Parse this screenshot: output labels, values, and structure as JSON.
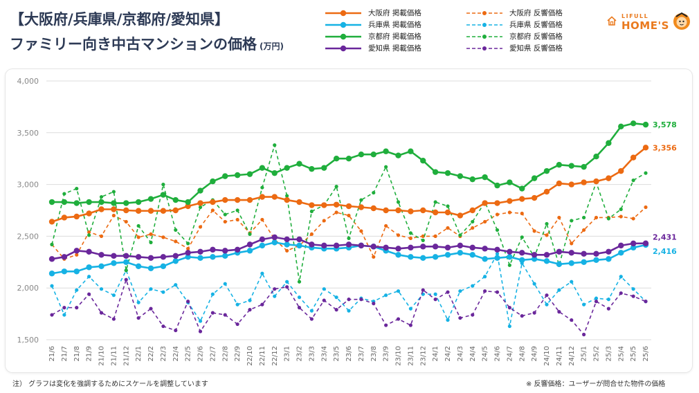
{
  "header": {
    "title_line1": "【大阪府/兵庫県/京都府/愛知県】",
    "title_line2": "ファミリー向き中古マンションの価格",
    "unit": "(万円)"
  },
  "logo": {
    "line1": "LIFULL",
    "line2": "HOME'S"
  },
  "footer": {
    "note_left": "注） グラフは変化を強調するためにスケールを調整しています",
    "note_right": "※ 反響価格：ユーザーが問合せた物件の価格"
  },
  "chart_data": {
    "type": "line",
    "ylim": [
      1500,
      4000
    ],
    "yticks": [
      1500,
      2000,
      2500,
      3000,
      3500,
      4000
    ],
    "ytick_labels": [
      "1,500",
      "2,000",
      "2,500",
      "3,000",
      "3,500",
      "4,000"
    ],
    "grid": true,
    "legend_position": "top",
    "categories": [
      "21/6",
      "21/7",
      "21/8",
      "21/9",
      "21/10",
      "21/11",
      "21/12",
      "22/1",
      "22/2",
      "22/3",
      "22/4",
      "22/5",
      "22/6",
      "22/7",
      "22/8",
      "22/9",
      "22/10",
      "22/11",
      "22/12",
      "23/1",
      "23/2",
      "23/3",
      "23/4",
      "23/5",
      "23/6",
      "23/7",
      "23/8",
      "23/9",
      "23/10",
      "23/11",
      "23/12",
      "24/1",
      "24/2",
      "24/3",
      "24/4",
      "24/5",
      "24/6",
      "24/7",
      "24/8",
      "24/9",
      "24/10",
      "24/11",
      "24/12",
      "25/1",
      "25/2",
      "25/3",
      "25/4",
      "25/5",
      "25/6"
    ],
    "series": [
      {
        "name": "大阪府 掲載価格",
        "style": "solid",
        "color": "#ec6a12",
        "values": [
          2640,
          2680,
          2690,
          2720,
          2760,
          2760,
          2750,
          2745,
          2745,
          2745,
          2750,
          2790,
          2820,
          2830,
          2850,
          2850,
          2850,
          2880,
          2880,
          2850,
          2830,
          2800,
          2800,
          2805,
          2790,
          2780,
          2770,
          2750,
          2750,
          2740,
          2750,
          2730,
          2730,
          2700,
          2750,
          2820,
          2820,
          2840,
          2860,
          2870,
          2930,
          3010,
          3000,
          3020,
          3030,
          3060,
          3130,
          3260,
          3356
        ],
        "end_label": "3,356"
      },
      {
        "name": "兵庫県 掲載価格",
        "style": "solid",
        "color": "#16b2e4",
        "values": [
          2140,
          2160,
          2160,
          2200,
          2210,
          2240,
          2250,
          2210,
          2190,
          2210,
          2260,
          2300,
          2290,
          2300,
          2310,
          2340,
          2360,
          2410,
          2440,
          2420,
          2410,
          2390,
          2380,
          2380,
          2390,
          2410,
          2400,
          2360,
          2320,
          2300,
          2290,
          2300,
          2320,
          2340,
          2320,
          2280,
          2290,
          2300,
          2270,
          2280,
          2260,
          2230,
          2240,
          2250,
          2270,
          2280,
          2340,
          2390,
          2416
        ],
        "end_label": "2,416"
      },
      {
        "name": "京都府 掲載価格",
        "style": "solid",
        "color": "#1fae3c",
        "values": [
          2830,
          2830,
          2820,
          2830,
          2830,
          2820,
          2820,
          2830,
          2860,
          2900,
          2850,
          2830,
          2940,
          3030,
          3080,
          3090,
          3100,
          3160,
          3110,
          3160,
          3200,
          3150,
          3160,
          3250,
          3250,
          3290,
          3290,
          3320,
          3280,
          3320,
          3230,
          3120,
          3110,
          3080,
          3050,
          3070,
          2990,
          3020,
          2960,
          3060,
          3130,
          3190,
          3180,
          3170,
          3270,
          3400,
          3560,
          3590,
          3578
        ],
        "end_label": "3,578"
      },
      {
        "name": "愛知県 掲載価格",
        "style": "solid",
        "color": "#6a279b",
        "values": [
          2280,
          2300,
          2360,
          2350,
          2320,
          2310,
          2310,
          2300,
          2290,
          2300,
          2310,
          2340,
          2350,
          2370,
          2360,
          2370,
          2420,
          2470,
          2490,
          2470,
          2470,
          2420,
          2410,
          2410,
          2420,
          2410,
          2400,
          2390,
          2380,
          2390,
          2400,
          2400,
          2390,
          2410,
          2390,
          2380,
          2370,
          2350,
          2340,
          2320,
          2320,
          2350,
          2340,
          2330,
          2330,
          2350,
          2410,
          2430,
          2431
        ],
        "end_label": "2,431"
      },
      {
        "name": "大阪府 反響価格",
        "style": "dashed",
        "color": "#ec6a12",
        "values": [
          2420,
          2280,
          2320,
          2540,
          2500,
          2700,
          2640,
          2490,
          2520,
          2490,
          2450,
          2380,
          2590,
          2750,
          2640,
          2660,
          2530,
          2660,
          2470,
          2360,
          2410,
          2520,
          2650,
          2730,
          2700,
          2550,
          2300,
          2600,
          2510,
          2480,
          2500,
          2500,
          2580,
          2500,
          2580,
          2640,
          2710,
          2730,
          2720,
          2550,
          2510,
          2680,
          2430,
          2560,
          2680,
          2680,
          2690,
          2670,
          2780
        ]
      },
      {
        "name": "兵庫県 反響価格",
        "style": "dashed",
        "color": "#16b2e4",
        "values": [
          2020,
          1740,
          1980,
          2110,
          1990,
          1930,
          2170,
          1860,
          1990,
          1960,
          2030,
          1860,
          1680,
          1940,
          2040,
          1840,
          1880,
          2140,
          1920,
          2060,
          1910,
          1780,
          1990,
          1910,
          1780,
          1900,
          1870,
          1930,
          1970,
          1800,
          1940,
          1940,
          1690,
          1970,
          2020,
          2110,
          2330,
          1630,
          2240,
          2040,
          1840,
          1980,
          2060,
          1840,
          1900,
          1890,
          2110,
          1990,
          1870
        ]
      },
      {
        "name": "京都府 反響価格",
        "style": "dashed",
        "color": "#1fae3c",
        "values": [
          2420,
          2910,
          2960,
          2510,
          2880,
          2930,
          2170,
          2600,
          2440,
          3000,
          2560,
          2430,
          2780,
          2850,
          2710,
          2750,
          2520,
          2970,
          3380,
          2890,
          2060,
          2740,
          2800,
          2980,
          2480,
          2850,
          2920,
          3170,
          2830,
          2530,
          2460,
          2830,
          2790,
          2510,
          2640,
          2830,
          2560,
          2220,
          2490,
          2300,
          2620,
          2220,
          2650,
          2680,
          3020,
          2670,
          2760,
          3040,
          3110
        ]
      },
      {
        "name": "愛知県 反響価格",
        "style": "dashed",
        "color": "#6a279b",
        "values": [
          1740,
          1810,
          1810,
          1940,
          1760,
          1700,
          2080,
          1710,
          1800,
          1630,
          1590,
          1870,
          1580,
          1760,
          1740,
          1650,
          1790,
          1840,
          1990,
          2010,
          1810,
          1700,
          1880,
          1790,
          1890,
          1890,
          1850,
          1640,
          1700,
          1640,
          1980,
          1890,
          1960,
          1710,
          1740,
          1970,
          1960,
          1810,
          1730,
          1760,
          1930,
          1770,
          1690,
          1550,
          1870,
          1800,
          1950,
          1920,
          1870
        ]
      }
    ]
  }
}
